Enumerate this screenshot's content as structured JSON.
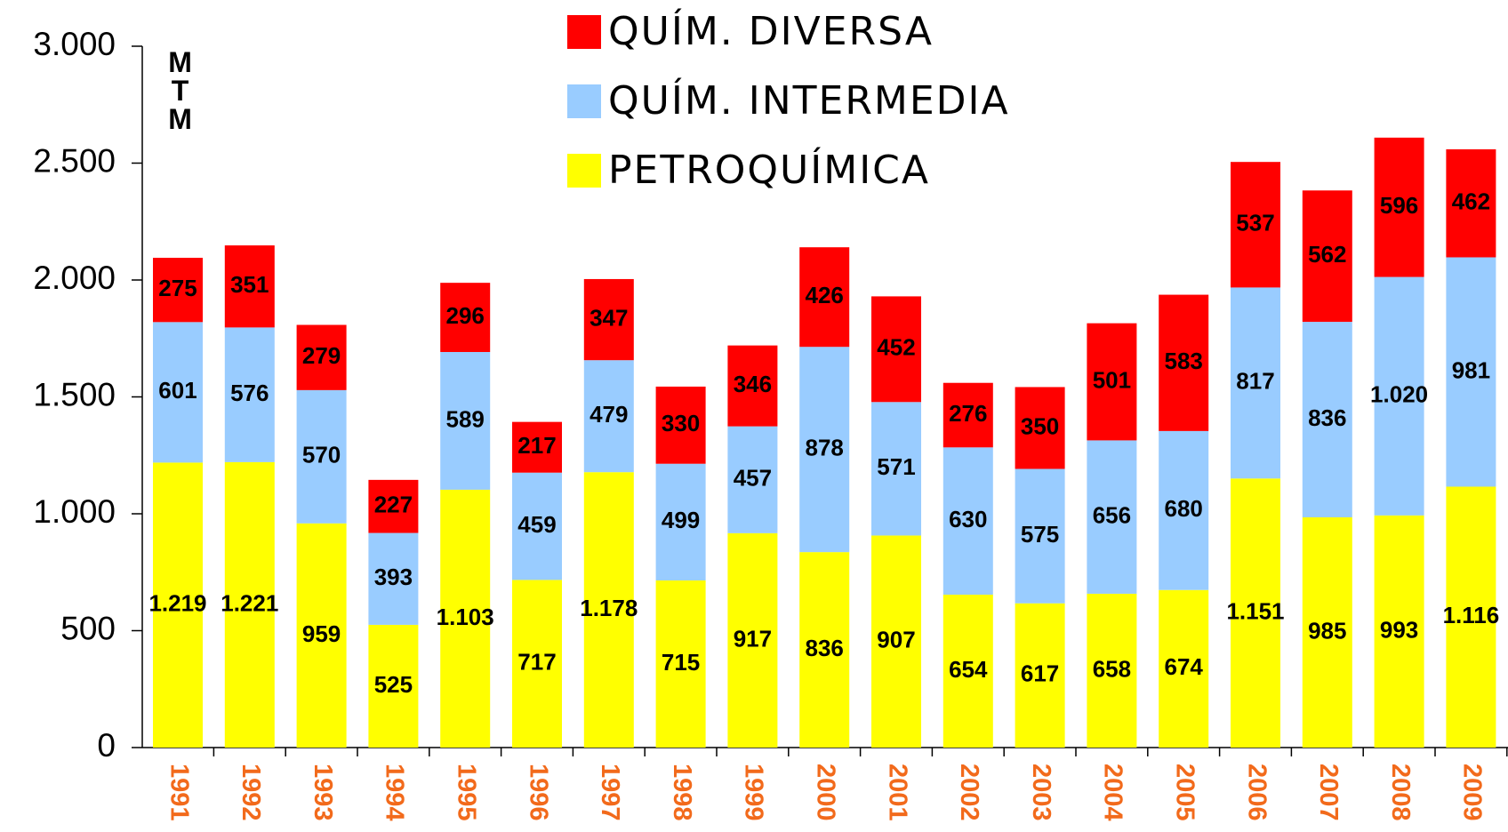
{
  "chart_data": {
    "type": "stacked_bar",
    "y_label": "MTM",
    "categories": [
      "1991",
      "1992",
      "1993",
      "1994",
      "1995",
      "1996",
      "1997",
      "1998",
      "1999",
      "2000",
      "2001",
      "2002",
      "2003",
      "2004",
      "2005",
      "2006",
      "2007",
      "2008",
      "2009"
    ],
    "series": [
      {
        "name": "PETROQUÍMICA",
        "color": "#ffff00",
        "values": [
          1219,
          1221,
          959,
          525,
          1103,
          717,
          1178,
          715,
          917,
          836,
          907,
          654,
          617,
          658,
          674,
          1151,
          985,
          993,
          1116
        ],
        "value_labels": [
          "1.219",
          "1.221",
          "959",
          "525",
          "1.103",
          "717",
          "1.178",
          "715",
          "917",
          "836",
          "907",
          "654",
          "617",
          "658",
          "674",
          "1.151",
          "985",
          "993",
          "1.116"
        ]
      },
      {
        "name": "QUÍM. INTERMEDIA",
        "color": "#99ccff",
        "values": [
          601,
          576,
          570,
          393,
          589,
          459,
          479,
          499,
          457,
          878,
          571,
          630,
          575,
          656,
          680,
          817,
          836,
          1020,
          981
        ],
        "value_labels": [
          "601",
          "576",
          "570",
          "393",
          "589",
          "459",
          "479",
          "499",
          "457",
          "878",
          "571",
          "630",
          "575",
          "656",
          "680",
          "817",
          "836",
          "1.020",
          "981"
        ]
      },
      {
        "name": "QUÍM. DIVERSA",
        "color": "#ff0000",
        "values": [
          275,
          351,
          279,
          227,
          296,
          217,
          347,
          330,
          346,
          426,
          452,
          276,
          350,
          501,
          583,
          537,
          562,
          596,
          462
        ]
      }
    ],
    "ylim": [
      0,
      3000
    ],
    "yticks": [
      0,
      500,
      {
        "value": 1000,
        "label": "1.000"
      },
      {
        "value": 1500,
        "label": "1.500"
      },
      {
        "value": 2000,
        "label": "2.000"
      },
      {
        "value": 2500,
        "label": "2.500"
      },
      {
        "value": 3000,
        "label": "3.000"
      }
    ],
    "legend_position": "top"
  }
}
